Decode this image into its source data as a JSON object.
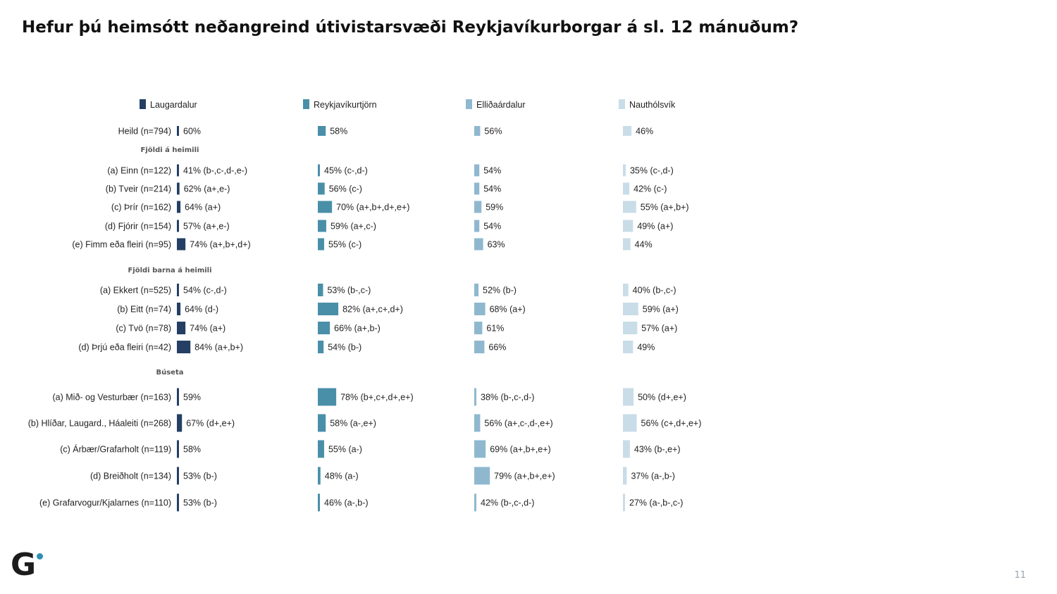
{
  "page": {
    "title": "Hefur þú heimsótt neðangreind útivistarsvæði Reykjavíkurborgar á sl. 12 mánuðum?",
    "logo_letter": "G",
    "page_number": "11"
  },
  "chart_data": {
    "type": "bar",
    "orientation": "horizontal",
    "value_unit": "%",
    "legend_position": "top",
    "series": [
      {
        "name": "Laugardalur",
        "color": "#243f63"
      },
      {
        "name": "Reykjavíkurtjörn",
        "color": "#4a8fa8"
      },
      {
        "name": "Elliðaárdalur",
        "color": "#8fb8cf"
      },
      {
        "name": "Nauthólsvík",
        "color": "#c9dde8"
      }
    ],
    "rows": [
      {
        "label": "Heild (n=794)",
        "values": [
          60,
          58,
          56,
          46
        ],
        "texts": [
          "60%",
          "58%",
          "56%",
          "46%"
        ]
      },
      {
        "group": "Fjöldi á heimili"
      },
      {
        "label": "(a) Einn (n=122)",
        "values": [
          41,
          45,
          54,
          35
        ],
        "texts": [
          "41% (b-,c-,d-,e-)",
          "45% (c-,d-)",
          "54%",
          "35% (c-,d-)"
        ]
      },
      {
        "label": "(b) Tveir (n=214)",
        "values": [
          62,
          56,
          54,
          42
        ],
        "texts": [
          "62% (a+,e-)",
          "56% (c-)",
          "54%",
          "42% (c-)"
        ]
      },
      {
        "label": "(c) Þrír (n=162)",
        "values": [
          64,
          70,
          59,
          55
        ],
        "texts": [
          "64% (a+)",
          "70% (a+,b+,d+,e+)",
          "59%",
          "55% (a+,b+)"
        ]
      },
      {
        "label": "(d) Fjórir (n=154)",
        "values": [
          57,
          59,
          54,
          49
        ],
        "texts": [
          "57% (a+,e-)",
          "59% (a+,c-)",
          "54%",
          "49% (a+)"
        ]
      },
      {
        "label": "(e) Fimm eða fleiri (n=95)",
        "values": [
          74,
          55,
          63,
          44
        ],
        "texts": [
          "74% (a+,b+,d+)",
          "55% (c-)",
          "63%",
          "44%"
        ]
      },
      {
        "group": "Fjöldi barna á heimili"
      },
      {
        "label": "(a) Ekkert (n=525)",
        "values": [
          54,
          53,
          52,
          40
        ],
        "texts": [
          "54% (c-,d-)",
          "53% (b-,c-)",
          "52% (b-)",
          "40% (b-,c-)"
        ]
      },
      {
        "label": "(b) Eitt (n=74)",
        "values": [
          64,
          82,
          68,
          59
        ],
        "texts": [
          "64% (d-)",
          "82% (a+,c+,d+)",
          "68% (a+)",
          "59% (a+)"
        ]
      },
      {
        "label": "(c) Tvö (n=78)",
        "values": [
          74,
          66,
          61,
          57
        ],
        "texts": [
          "74% (a+)",
          "66% (a+,b-)",
          "61%",
          "57% (a+)"
        ]
      },
      {
        "label": "(d) Þrjú eða fleiri (n=42)",
        "values": [
          84,
          54,
          66,
          49
        ],
        "texts": [
          "84% (a+,b+)",
          "54% (b-)",
          "66%",
          "49%"
        ]
      },
      {
        "group": "Búseta"
      },
      {
        "label": "(a) Mið- og Vesturbær (n=163)",
        "values": [
          59,
          78,
          38,
          50
        ],
        "texts": [
          "59%",
          "78% (b+,c+,d+,e+)",
          "38% (b-,c-,d-)",
          "50% (d+,e+)"
        ]
      },
      {
        "label": "(b) Hlíðar, Laugard., Háaleiti (n=268)",
        "values": [
          67,
          58,
          56,
          56
        ],
        "texts": [
          "67% (d+,e+)",
          "58% (a-,e+)",
          "56% (a+,c-,d-,e+)",
          "56% (c+,d+,e+)"
        ]
      },
      {
        "label": "(c) Árbær/Grafarholt (n=119)",
        "values": [
          58,
          55,
          69,
          43
        ],
        "texts": [
          "58%",
          "55% (a-)",
          "69% (a+,b+,e+)",
          "43% (b-,e+)"
        ]
      },
      {
        "label": "(d) Breiðholt (n=134)",
        "values": [
          53,
          48,
          79,
          37
        ],
        "texts": [
          "53% (b-)",
          "48% (a-)",
          "79% (a+,b+,e+)",
          "37% (a-,b-)"
        ]
      },
      {
        "label": "(e) Grafarvogur/Kjalarnes (n=110)",
        "values": [
          53,
          46,
          42,
          27
        ],
        "texts": [
          "53% (b-)",
          "46% (a-,b-)",
          "42% (b-,c-,d-)",
          "27% (a-,b-,c-)"
        ]
      }
    ]
  }
}
